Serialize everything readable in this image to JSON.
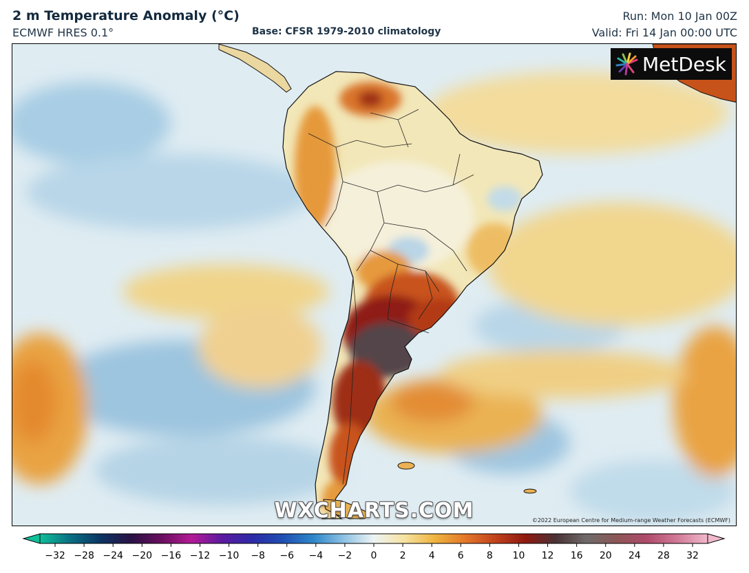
{
  "header": {
    "title": "2 m Temperature Anomaly (°C)",
    "model": "ECMWF HRES 0.1°",
    "base": "Base: CFSR 1979-2010 climatology",
    "run": "Run: Mon 10 Jan 00Z",
    "valid": "Valid: Fri 14 Jan 00:00 UTC"
  },
  "map": {
    "logo_text": "MetDesk",
    "watermark": "WXCHARTS.COM",
    "copyright": "©2022 European Centre for Medium-range Weather Forecasts (ECMWF)",
    "colors": {
      "ocean_cool": "#cfe3ef",
      "ocean_cold": "#9fc6e0",
      "neutral": "#f2f1e6",
      "warm": "#f1d68e",
      "warmer": "#e9a343",
      "hot": "#c8531a",
      "very_hot": "#7a1a0f",
      "extreme": "#4d4448"
    }
  },
  "colorbar": {
    "ticks": [
      "−32",
      "−28",
      "−24",
      "−20",
      "−16",
      "−12",
      "−10",
      "−8",
      "−6",
      "−4",
      "−2",
      "0",
      "2",
      "4",
      "6",
      "8",
      "10",
      "12",
      "16",
      "20",
      "24",
      "28",
      "32"
    ],
    "stops": [
      "#0fbf9a",
      "#0a6f83",
      "#0b3563",
      "#2a1144",
      "#6a0f5e",
      "#b31a97",
      "#5b1aa0",
      "#2d2aa8",
      "#1f4fb3",
      "#2d86c9",
      "#8cc1e3",
      "#eef4f4",
      "#f6e3a2",
      "#efb43f",
      "#e3772a",
      "#c2421c",
      "#8f1810",
      "#4a3336",
      "#6f6a6a",
      "#8c5656",
      "#b04b6b",
      "#d17a98",
      "#f1b8cc"
    ]
  }
}
